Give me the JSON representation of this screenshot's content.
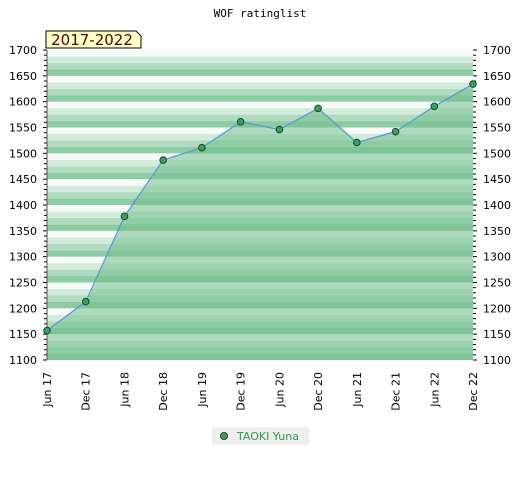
{
  "colors": {
    "band_dark": "#7ec495",
    "band_light": "#ffffff",
    "area_fill": "#72c08c",
    "line": "#5b9bd5",
    "marker": "#3aa060",
    "badge_bg": "#ffffc8"
  },
  "chart_data": {
    "type": "area",
    "title": "WOF ratinglist",
    "range_label": "2017-2022",
    "categories": [
      "Jun 17",
      "Dec 17",
      "Jun 18",
      "Dec 18",
      "Jun 19",
      "Dec 19",
      "Jun 20",
      "Dec 20",
      "Jun 21",
      "Dec 21",
      "Jun 22",
      "Dec 22"
    ],
    "series": [
      {
        "name": "TAOKI Yuna",
        "values": [
          1157,
          1213,
          1378,
          1487,
          1511,
          1561,
          1546,
          1587,
          1521,
          1542,
          1591,
          1634
        ]
      }
    ],
    "ylim": [
      1100,
      1700
    ],
    "yticks": [
      1100,
      1150,
      1200,
      1250,
      1300,
      1350,
      1400,
      1450,
      1500,
      1550,
      1600,
      1650,
      1700
    ],
    "grid": false,
    "legend_position": "bottom-center"
  }
}
